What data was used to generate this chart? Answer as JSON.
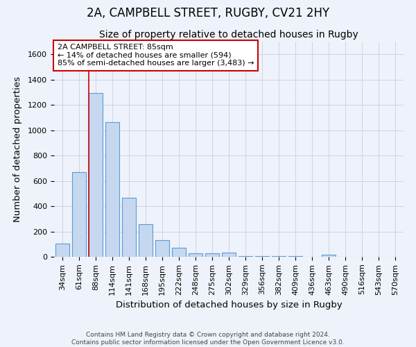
{
  "title": "2A, CAMPBELL STREET, RUGBY, CV21 2HY",
  "subtitle": "Size of property relative to detached houses in Rugby",
  "xlabel": "Distribution of detached houses by size in Rugby",
  "ylabel": "Number of detached properties",
  "categories": [
    "34sqm",
    "61sqm",
    "88sqm",
    "114sqm",
    "141sqm",
    "168sqm",
    "195sqm",
    "222sqm",
    "248sqm",
    "275sqm",
    "302sqm",
    "329sqm",
    "356sqm",
    "382sqm",
    "409sqm",
    "436sqm",
    "463sqm",
    "490sqm",
    "516sqm",
    "543sqm",
    "570sqm"
  ],
  "values": [
    103,
    670,
    1295,
    1065,
    465,
    260,
    133,
    70,
    28,
    30,
    32,
    8,
    8,
    8,
    8,
    0,
    18,
    0,
    0,
    0,
    0
  ],
  "bar_color": "#c5d8f0",
  "bar_edge_color": "#5b9bd5",
  "background_color": "#eef2fa",
  "grid_color": "#c8cfe0",
  "redline_index": 2,
  "redline_color": "#cc0000",
  "annotation_text": "2A CAMPBELL STREET: 85sqm\n← 14% of detached houses are smaller (594)\n85% of semi-detached houses are larger (3,483) →",
  "annotation_box_color": "#ffffff",
  "annotation_box_edge": "#cc0000",
  "ylim": [
    0,
    1700
  ],
  "yticks": [
    0,
    200,
    400,
    600,
    800,
    1000,
    1200,
    1400,
    1600
  ],
  "footer_line1": "Contains HM Land Registry data © Crown copyright and database right 2024.",
  "footer_line2": "Contains public sector information licensed under the Open Government Licence v3.0.",
  "title_fontsize": 12,
  "subtitle_fontsize": 10,
  "axis_label_fontsize": 9.5,
  "tick_fontsize": 8,
  "footer_fontsize": 6.5
}
